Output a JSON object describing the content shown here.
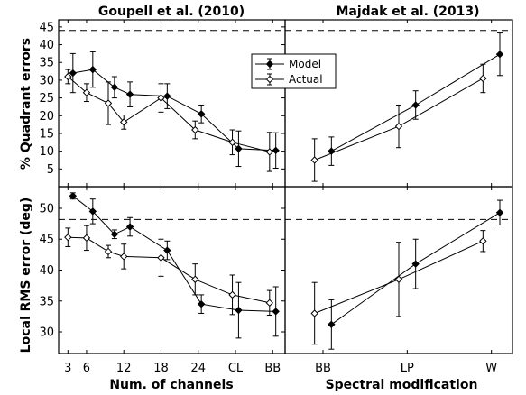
{
  "chart_data": {
    "type": "line",
    "titles": {
      "left": "Goupell et al. (2010)",
      "right": "Majdak et al. (2013)"
    },
    "xlabels": {
      "left": "Num. of channels",
      "right": "Spectral modification"
    },
    "ylabels": {
      "top": "% Quadrant errors",
      "bottom": "Local RMS error (deg)"
    },
    "legend": {
      "placement": "top-center",
      "entries": [
        "Model",
        "Actual"
      ]
    },
    "x_left": {
      "categories": [
        "3",
        "6",
        "12",
        "18",
        "24",
        "CL",
        "BB"
      ],
      "positions": [
        3,
        6,
        12,
        18,
        24,
        30,
        36
      ],
      "range": [
        1.5,
        38
      ]
    },
    "x_right": {
      "categories": [
        "BB",
        "LP",
        "W"
      ],
      "positions": [
        1,
        2,
        3
      ],
      "range": [
        0.55,
        3.25
      ]
    },
    "panels": [
      {
        "id": "top-left",
        "ylim": [
          0,
          47
        ],
        "yticks": [
          5,
          10,
          15,
          20,
          25,
          30,
          35,
          40,
          45
        ],
        "reference": 44,
        "series": [
          {
            "name": "Model",
            "x": [
              3.8,
              7,
              10.5,
              13,
              19,
              24.5,
              30.5,
              36.5
            ],
            "y": [
              32,
              33,
              28,
              26,
              25.5,
              20.5,
              10.7,
              10.2
            ],
            "err": [
              5.5,
              5,
              3,
              3.5,
              3.5,
              2.5,
              5,
              5
            ]
          },
          {
            "name": "Actual",
            "x": [
              3,
              6,
              9.5,
              12,
              18,
              23.5,
              29.5,
              35.5
            ],
            "y": [
              31,
              26.5,
              23.5,
              18.2,
              25,
              16,
              12.5,
              9.8
            ],
            "err": [
              2,
              2.5,
              6,
              2,
              4,
              2.5,
              3.5,
              5.5
            ]
          }
        ]
      },
      {
        "id": "top-right",
        "ylim": [
          0,
          47
        ],
        "reference": 44,
        "series": [
          {
            "name": "Model",
            "x": [
              1.1,
              2.1,
              3.1
            ],
            "y": [
              10,
              23,
              37.3
            ],
            "err": [
              4,
              4,
              6
            ]
          },
          {
            "name": "Actual",
            "x": [
              0.9,
              1.9,
              2.9
            ],
            "y": [
              7.5,
              17,
              30.5
            ],
            "err": [
              6,
              6,
              4
            ]
          }
        ]
      },
      {
        "id": "bottom-left",
        "ylim": [
          26.5,
          53.5
        ],
        "yticks": [
          30,
          35,
          40,
          45,
          50
        ],
        "reference": 48.2,
        "series": [
          {
            "name": "Model",
            "x": [
              3.8,
              7,
              10.5,
              13,
              19,
              24.5,
              30.5,
              36.5
            ],
            "y": [
              52,
              49.5,
              45.8,
              47,
              43.2,
              34.5,
              33.5,
              33.3
            ],
            "err": [
              0.5,
              2,
              0.7,
              1.5,
              1.5,
              1.5,
              4.5,
              4
            ]
          },
          {
            "name": "Actual",
            "x": [
              3,
              6,
              9.5,
              12,
              18,
              23.5,
              29.5,
              35.5
            ],
            "y": [
              45.3,
              45.2,
              43,
              42.2,
              42,
              38.5,
              36,
              34.7
            ],
            "err": [
              1.5,
              2,
              1,
              2,
              3,
              2.5,
              3.2,
              2
            ]
          }
        ]
      },
      {
        "id": "bottom-right",
        "ylim": [
          26.5,
          53.5
        ],
        "reference": 48.2,
        "series": [
          {
            "name": "Model",
            "x": [
              1.1,
              2.1,
              3.1
            ],
            "y": [
              31.2,
              41,
              49.3
            ],
            "err": [
              4,
              4,
              2
            ]
          },
          {
            "name": "Actual",
            "x": [
              0.9,
              1.9,
              2.9
            ],
            "y": [
              33,
              38.5,
              44.7
            ],
            "err": [
              5,
              6,
              1.7
            ]
          }
        ]
      }
    ]
  }
}
